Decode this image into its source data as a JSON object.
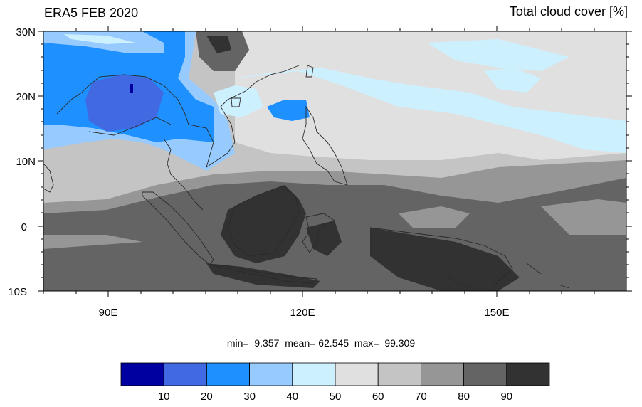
{
  "header": {
    "left_title": "ERA5 FEB 2020",
    "right_title": "Total cloud cover [%]"
  },
  "map": {
    "lon_range": [
      80,
      170
    ],
    "lat_range": [
      -10,
      30
    ],
    "lat_tick_labels": [
      "30N",
      "20N",
      "10N",
      "0",
      "10S"
    ],
    "lon_tick_labels": [
      "90E",
      "120E",
      "150E"
    ],
    "features": [
      "coastlines",
      "filled cloud cover contours"
    ]
  },
  "stats": {
    "min_label": "min=",
    "min_value": "9.357",
    "mean_label": "mean=",
    "mean_value": "62.545",
    "max_label": "max=",
    "max_value": "99.309"
  },
  "colorbar": {
    "levels": [
      "10",
      "20",
      "30",
      "40",
      "50",
      "60",
      "70",
      "80",
      "90"
    ],
    "colors": [
      "#0000a0",
      "#4169e1",
      "#1e90ff",
      "#97cbff",
      "#cdf0ff",
      "#e0e0e0",
      "#c4c4c4",
      "#969696",
      "#646464",
      "#323232"
    ]
  }
}
